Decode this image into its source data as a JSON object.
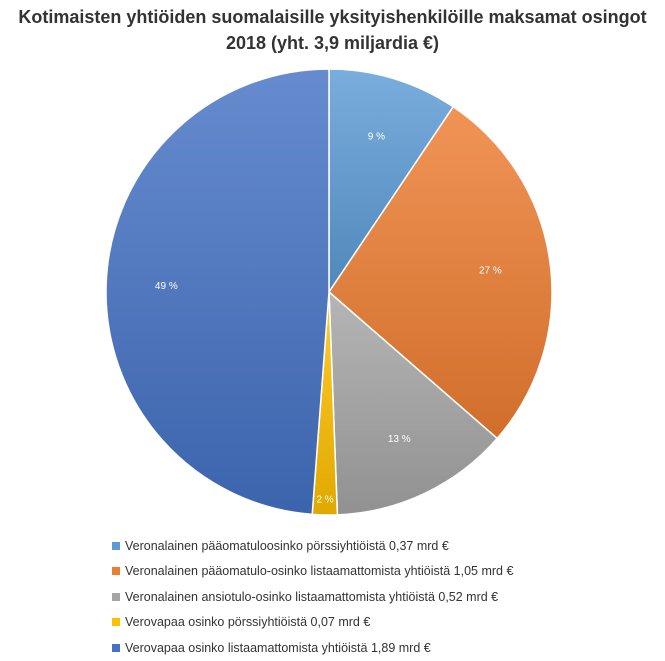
{
  "chart_data": {
    "type": "pie",
    "title_line1": "Kotimaisten yhtiöiden suomalaisille yksityishenkilöille maksamat osingot",
    "title_line2": "2018 (yht. 3,9 miljardia €)",
    "slices": [
      {
        "name": "Veronalainen pääomatuloosinko pörssiyhtiöistä 0,37 mrd €",
        "value": 9.4,
        "label": "9 %",
        "color": "#5b9bd5"
      },
      {
        "name": "Veronalainen pääomatulo-osinko listaamattomista yhtiöistä 1,05 mrd €",
        "value": 27,
        "label": "27 %",
        "color": "#ed7d31"
      },
      {
        "name": "Veronalainen ansiotulo-osinko listaamattomista yhtiöistä 0,52 mrd €",
        "value": 13,
        "label": "13 %",
        "color": "#a5a5a5"
      },
      {
        "name": "Verovapaa osinko pörssiyhtiöistä 0,07 mrd €",
        "value": 1.8,
        "label": "2 %",
        "color": "#ffc000"
      },
      {
        "name": "Verovapaa osinko listaamattomista yhtiöistä 1,89 mrd €",
        "value": 48.8,
        "label": "49 %",
        "color": "#4472c4"
      }
    ]
  }
}
